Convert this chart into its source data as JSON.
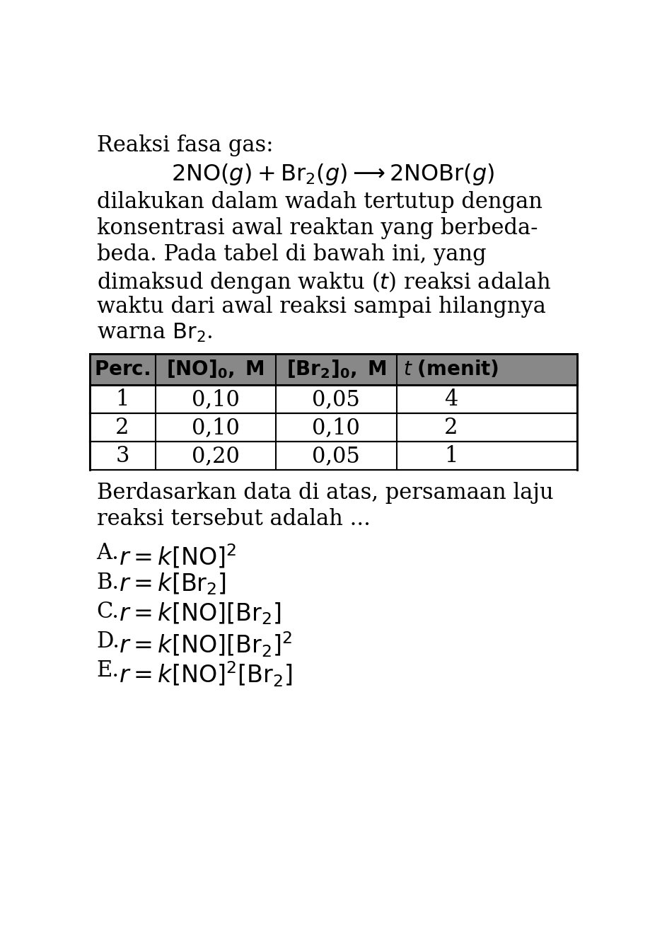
{
  "background_color": "#ffffff",
  "font_size_title": 22,
  "font_size_body": 22,
  "font_size_table": 20,
  "font_size_options": 22,
  "table_rows": [
    [
      "1",
      "0,10",
      "0,05",
      "4"
    ],
    [
      "2",
      "0,10",
      "0,10",
      "2"
    ],
    [
      "3",
      "0,20",
      "0,05",
      "1"
    ]
  ],
  "conclusion_lines": [
    "Berdasarkan data di atas, persamaan laju",
    "reaksi tersebut adalah ..."
  ]
}
